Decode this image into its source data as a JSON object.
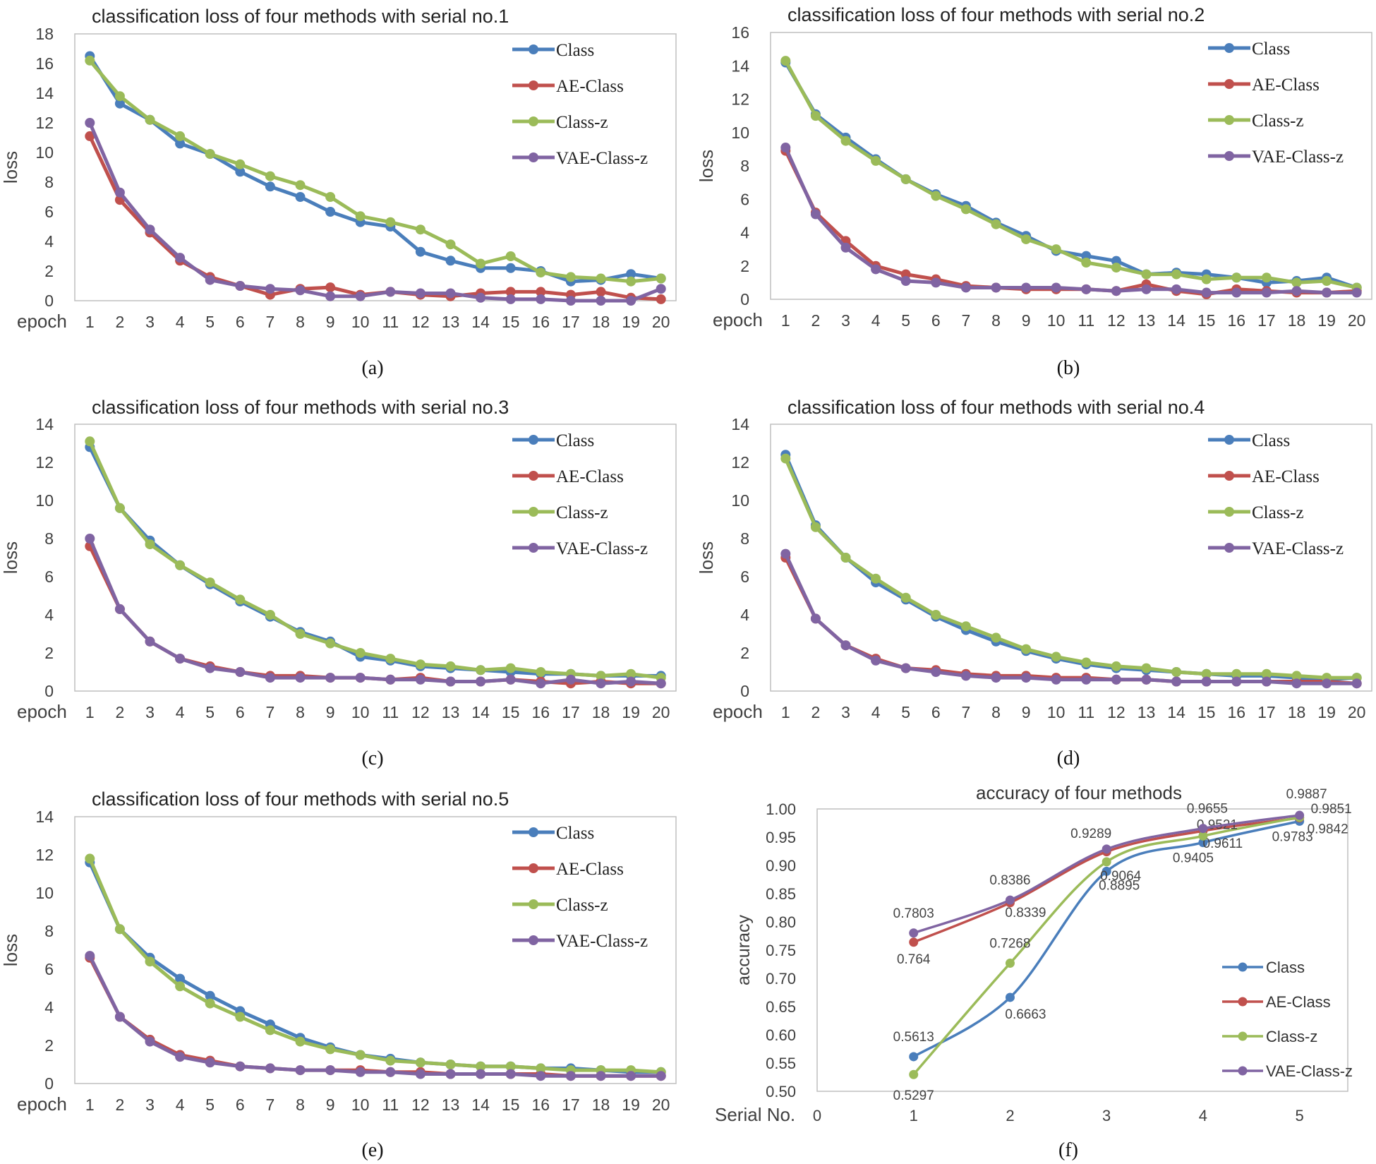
{
  "colors": {
    "Class": "#4a7ebb",
    "AE-Class": "#c0504d",
    "Class-z": "#9bbb59",
    "VAE-Class-z": "#8064a2",
    "plot_border": "#bfbfbf",
    "text": "#404040"
  },
  "chart_data": [
    {
      "type": "line",
      "title": "classification loss of four methods with serial no.1",
      "xlabel": "epoch",
      "ylabel": "loss",
      "caption": "(a)",
      "categories": [
        "1",
        "2",
        "3",
        "4",
        "5",
        "6",
        "7",
        "8",
        "9",
        "10",
        "11",
        "12",
        "13",
        "14",
        "15",
        "16",
        "17",
        "18",
        "19",
        "20"
      ],
      "ylim": [
        0,
        18
      ],
      "yticks": [
        "0",
        "2",
        "4",
        "6",
        "8",
        "10",
        "12",
        "14",
        "16",
        "18"
      ],
      "grid": false,
      "legend": "top-right",
      "series": [
        {
          "name": "Class",
          "values": [
            16.5,
            13.3,
            12.2,
            10.6,
            9.9,
            8.7,
            7.7,
            7.0,
            6.0,
            5.3,
            5.0,
            3.3,
            2.7,
            2.2,
            2.2,
            2.0,
            1.3,
            1.4,
            1.8,
            1.5
          ]
        },
        {
          "name": "AE-Class",
          "values": [
            11.1,
            6.8,
            4.6,
            2.7,
            1.6,
            1.0,
            0.4,
            0.8,
            0.9,
            0.4,
            0.6,
            0.4,
            0.3,
            0.5,
            0.6,
            0.6,
            0.4,
            0.6,
            0.2,
            0.1
          ]
        },
        {
          "name": "Class-z",
          "values": [
            16.2,
            13.8,
            12.2,
            11.1,
            9.9,
            9.2,
            8.4,
            7.8,
            7.0,
            5.7,
            5.3,
            4.8,
            3.8,
            2.5,
            3.0,
            1.9,
            1.6,
            1.5,
            1.3,
            1.5
          ]
        },
        {
          "name": "VAE-Class-z",
          "values": [
            12.0,
            7.3,
            4.8,
            2.9,
            1.4,
            1.0,
            0.8,
            0.7,
            0.3,
            0.3,
            0.6,
            0.5,
            0.5,
            0.2,
            0.1,
            0.1,
            0.0,
            0.0,
            0.0,
            0.8
          ]
        }
      ]
    },
    {
      "type": "line",
      "title": "classification loss of four methods with serial no.2",
      "xlabel": "epoch",
      "ylabel": "loss",
      "caption": "(b)",
      "categories": [
        "1",
        "2",
        "3",
        "4",
        "5",
        "6",
        "7",
        "8",
        "9",
        "10",
        "11",
        "12",
        "13",
        "14",
        "15",
        "16",
        "17",
        "18",
        "19",
        "20"
      ],
      "ylim": [
        0,
        16
      ],
      "yticks": [
        "0",
        "2",
        "4",
        "6",
        "8",
        "10",
        "12",
        "14",
        "16"
      ],
      "grid": false,
      "legend": "top-right",
      "series": [
        {
          "name": "Class",
          "values": [
            14.2,
            11.1,
            9.7,
            8.4,
            7.2,
            6.3,
            5.6,
            4.6,
            3.8,
            2.9,
            2.6,
            2.3,
            1.5,
            1.6,
            1.5,
            1.3,
            1.0,
            1.1,
            1.3,
            0.7
          ]
        },
        {
          "name": "AE-Class",
          "values": [
            8.9,
            5.2,
            3.5,
            2.0,
            1.5,
            1.2,
            0.8,
            0.7,
            0.6,
            0.6,
            0.6,
            0.5,
            0.9,
            0.5,
            0.3,
            0.6,
            0.5,
            0.4,
            0.4,
            0.5
          ]
        },
        {
          "name": "Class-z",
          "values": [
            14.3,
            11.0,
            9.5,
            8.3,
            7.2,
            6.2,
            5.4,
            4.5,
            3.6,
            3.0,
            2.2,
            1.9,
            1.5,
            1.5,
            1.2,
            1.3,
            1.3,
            1.0,
            1.1,
            0.7
          ]
        },
        {
          "name": "VAE-Class-z",
          "values": [
            9.1,
            5.1,
            3.1,
            1.8,
            1.1,
            1.0,
            0.7,
            0.7,
            0.7,
            0.7,
            0.6,
            0.5,
            0.6,
            0.6,
            0.4,
            0.4,
            0.4,
            0.5,
            0.4,
            0.4
          ]
        }
      ]
    },
    {
      "type": "line",
      "title": "classification loss of four methods with serial no.3",
      "xlabel": "epoch",
      "ylabel": "loss",
      "caption": "(c)",
      "categories": [
        "1",
        "2",
        "3",
        "4",
        "5",
        "6",
        "7",
        "8",
        "9",
        "10",
        "11",
        "12",
        "13",
        "14",
        "15",
        "16",
        "17",
        "18",
        "19",
        "20"
      ],
      "ylim": [
        0,
        14
      ],
      "yticks": [
        "0",
        "2",
        "4",
        "6",
        "8",
        "10",
        "12",
        "14"
      ],
      "grid": false,
      "legend": "top-right",
      "series": [
        {
          "name": "Class",
          "values": [
            12.8,
            9.6,
            7.9,
            6.6,
            5.6,
            4.7,
            3.9,
            3.1,
            2.6,
            1.8,
            1.6,
            1.3,
            1.2,
            1.1,
            1.0,
            0.9,
            0.9,
            0.8,
            0.8,
            0.8
          ]
        },
        {
          "name": "AE-Class",
          "values": [
            7.6,
            4.3,
            2.6,
            1.7,
            1.3,
            1.0,
            0.8,
            0.8,
            0.7,
            0.7,
            0.6,
            0.7,
            0.5,
            0.5,
            0.6,
            0.5,
            0.4,
            0.5,
            0.4,
            0.4
          ]
        },
        {
          "name": "Class-z",
          "values": [
            13.1,
            9.6,
            7.7,
            6.6,
            5.7,
            4.8,
            4.0,
            3.0,
            2.5,
            2.0,
            1.7,
            1.4,
            1.3,
            1.1,
            1.2,
            1.0,
            0.9,
            0.8,
            0.9,
            0.7
          ]
        },
        {
          "name": "VAE-Class-z",
          "values": [
            8.0,
            4.3,
            2.6,
            1.7,
            1.2,
            1.0,
            0.7,
            0.7,
            0.7,
            0.7,
            0.6,
            0.6,
            0.5,
            0.5,
            0.6,
            0.4,
            0.6,
            0.4,
            0.5,
            0.4
          ]
        }
      ]
    },
    {
      "type": "line",
      "title": "classification loss of four methods with serial no.4",
      "xlabel": "epoch",
      "ylabel": "loss",
      "caption": "(d)",
      "categories": [
        "1",
        "2",
        "3",
        "4",
        "5",
        "6",
        "7",
        "8",
        "9",
        "10",
        "11",
        "12",
        "13",
        "14",
        "15",
        "16",
        "17",
        "18",
        "19",
        "20"
      ],
      "ylim": [
        0,
        14
      ],
      "yticks": [
        "0",
        "2",
        "4",
        "6",
        "8",
        "10",
        "12",
        "14"
      ],
      "grid": false,
      "legend": "top-right",
      "series": [
        {
          "name": "Class",
          "values": [
            12.4,
            8.7,
            7.0,
            5.7,
            4.8,
            3.9,
            3.2,
            2.6,
            2.1,
            1.7,
            1.4,
            1.2,
            1.1,
            1.0,
            0.9,
            0.8,
            0.8,
            0.7,
            0.6,
            0.7
          ]
        },
        {
          "name": "AE-Class",
          "values": [
            7.0,
            3.8,
            2.4,
            1.7,
            1.2,
            1.1,
            0.9,
            0.8,
            0.8,
            0.7,
            0.7,
            0.6,
            0.6,
            0.5,
            0.5,
            0.5,
            0.5,
            0.5,
            0.5,
            0.4
          ]
        },
        {
          "name": "Class-z",
          "values": [
            12.2,
            8.6,
            7.0,
            5.9,
            4.9,
            4.0,
            3.4,
            2.8,
            2.2,
            1.8,
            1.5,
            1.3,
            1.2,
            1.0,
            0.9,
            0.9,
            0.9,
            0.8,
            0.7,
            0.7
          ]
        },
        {
          "name": "VAE-Class-z",
          "values": [
            7.2,
            3.8,
            2.4,
            1.6,
            1.2,
            1.0,
            0.8,
            0.7,
            0.7,
            0.6,
            0.6,
            0.6,
            0.6,
            0.5,
            0.5,
            0.5,
            0.5,
            0.4,
            0.4,
            0.4
          ]
        }
      ]
    },
    {
      "type": "line",
      "title": "classification loss of four methods with serial no.5",
      "xlabel": "epoch",
      "ylabel": "loss",
      "caption": "(e)",
      "categories": [
        "1",
        "2",
        "3",
        "4",
        "5",
        "6",
        "7",
        "8",
        "9",
        "10",
        "11",
        "12",
        "13",
        "14",
        "15",
        "16",
        "17",
        "18",
        "19",
        "20"
      ],
      "ylim": [
        0,
        14
      ],
      "yticks": [
        "0",
        "2",
        "4",
        "6",
        "8",
        "10",
        "12",
        "14"
      ],
      "grid": false,
      "legend": "top-right",
      "series": [
        {
          "name": "Class",
          "values": [
            11.6,
            8.1,
            6.6,
            5.5,
            4.6,
            3.8,
            3.1,
            2.4,
            1.9,
            1.5,
            1.3,
            1.1,
            1.0,
            0.9,
            0.9,
            0.8,
            0.8,
            0.7,
            0.6,
            0.6
          ]
        },
        {
          "name": "AE-Class",
          "values": [
            6.6,
            3.5,
            2.3,
            1.5,
            1.2,
            0.9,
            0.8,
            0.7,
            0.7,
            0.7,
            0.6,
            0.6,
            0.5,
            0.5,
            0.5,
            0.5,
            0.4,
            0.4,
            0.4,
            0.4
          ]
        },
        {
          "name": "Class-z",
          "values": [
            11.8,
            8.1,
            6.4,
            5.1,
            4.2,
            3.5,
            2.8,
            2.2,
            1.8,
            1.5,
            1.2,
            1.1,
            1.0,
            0.9,
            0.9,
            0.8,
            0.7,
            0.7,
            0.7,
            0.6
          ]
        },
        {
          "name": "VAE-Class-z",
          "values": [
            6.7,
            3.5,
            2.2,
            1.4,
            1.1,
            0.9,
            0.8,
            0.7,
            0.7,
            0.6,
            0.6,
            0.5,
            0.5,
            0.5,
            0.5,
            0.4,
            0.4,
            0.4,
            0.4,
            0.4
          ]
        }
      ]
    },
    {
      "type": "line",
      "title": "accuracy of four methods",
      "xlabel": "Serial No.",
      "ylabel": "accuracy",
      "caption": "(f)",
      "categories": [
        "1",
        "2",
        "3",
        "4",
        "5"
      ],
      "x_origin_label": "0",
      "ylim": [
        0.5,
        1.0
      ],
      "yticks": [
        "0.50",
        "0.55",
        "0.60",
        "0.65",
        "0.70",
        "0.75",
        "0.80",
        "0.85",
        "0.90",
        "0.95",
        "1.00"
      ],
      "grid": false,
      "legend": "bottom-right",
      "series": [
        {
          "name": "Class",
          "values": [
            0.5613,
            0.6663,
            0.8895,
            0.9405,
            0.9783
          ],
          "labels": [
            "0.5613",
            "0.6663",
            "0.8895",
            "0.9405",
            "0.9783"
          ]
        },
        {
          "name": "AE-Class",
          "values": [
            0.764,
            0.8339,
            0.9242,
            0.9611,
            0.9842
          ],
          "labels": [
            "0.764",
            "0.8339",
            "",
            "0.9611",
            "0.9842"
          ]
        },
        {
          "name": "Class-z",
          "values": [
            0.5297,
            0.7268,
            0.9064,
            0.9521,
            0.9851
          ],
          "labels": [
            "0.5297",
            "0.7268",
            "0.9064",
            "0.9521",
            "0.9851"
          ]
        },
        {
          "name": "VAE-Class-z",
          "values": [
            0.7803,
            0.8386,
            0.9289,
            0.9655,
            0.9887
          ],
          "labels": [
            "0.7803",
            "0.8386",
            "0.9289",
            "0.9655",
            "0.9887"
          ]
        }
      ]
    }
  ]
}
